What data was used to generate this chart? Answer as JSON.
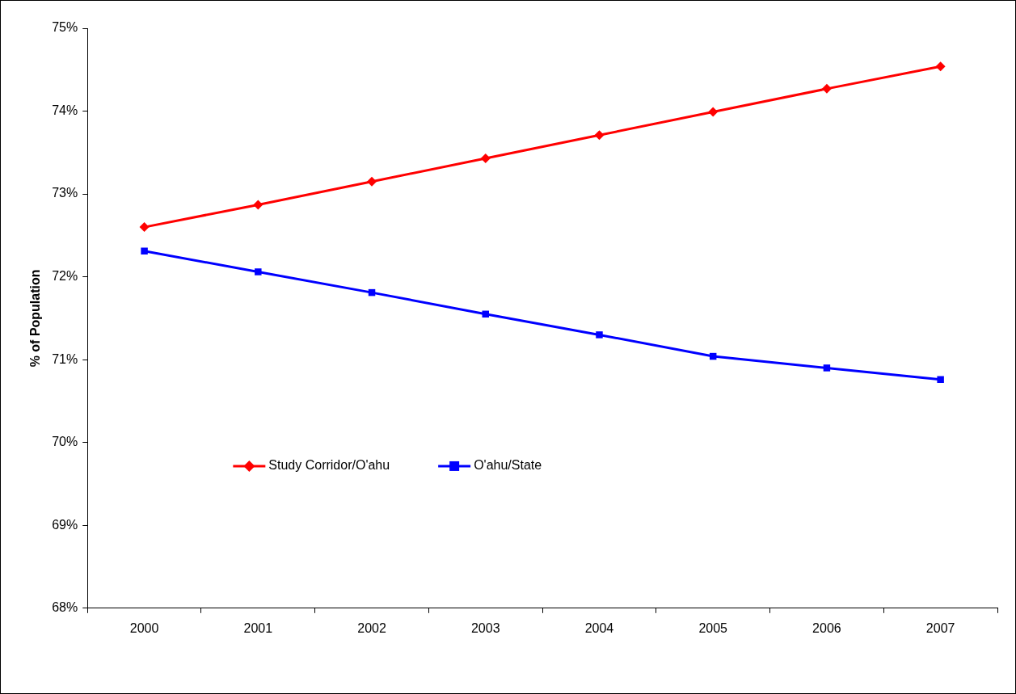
{
  "chart_data": {
    "type": "line",
    "ylabel": "% of Population",
    "categories": [
      "2000",
      "2001",
      "2002",
      "2003",
      "2004",
      "2005",
      "2006",
      "2007"
    ],
    "series": [
      {
        "name": "Study Corridor/O'ahu",
        "color": "#ff0000",
        "marker": "diamond",
        "values": [
          72.6,
          72.87,
          73.15,
          73.43,
          73.71,
          73.99,
          74.27,
          74.54
        ]
      },
      {
        "name": "O'ahu/State",
        "color": "#0000ff",
        "marker": "square",
        "values": [
          72.31,
          72.06,
          71.81,
          71.55,
          71.3,
          71.04,
          70.9,
          70.76
        ]
      }
    ],
    "ylim": [
      68,
      75
    ],
    "yticks": [
      {
        "value": 68,
        "label": "68%"
      },
      {
        "value": 69,
        "label": "69%"
      },
      {
        "value": 70,
        "label": "70%"
      },
      {
        "value": 71,
        "label": "71%"
      },
      {
        "value": 72,
        "label": "72%"
      },
      {
        "value": 73,
        "label": "73%"
      },
      {
        "value": 74,
        "label": "74%"
      },
      {
        "value": 75,
        "label": "75%"
      }
    ],
    "grid": false,
    "legend": "center left"
  }
}
